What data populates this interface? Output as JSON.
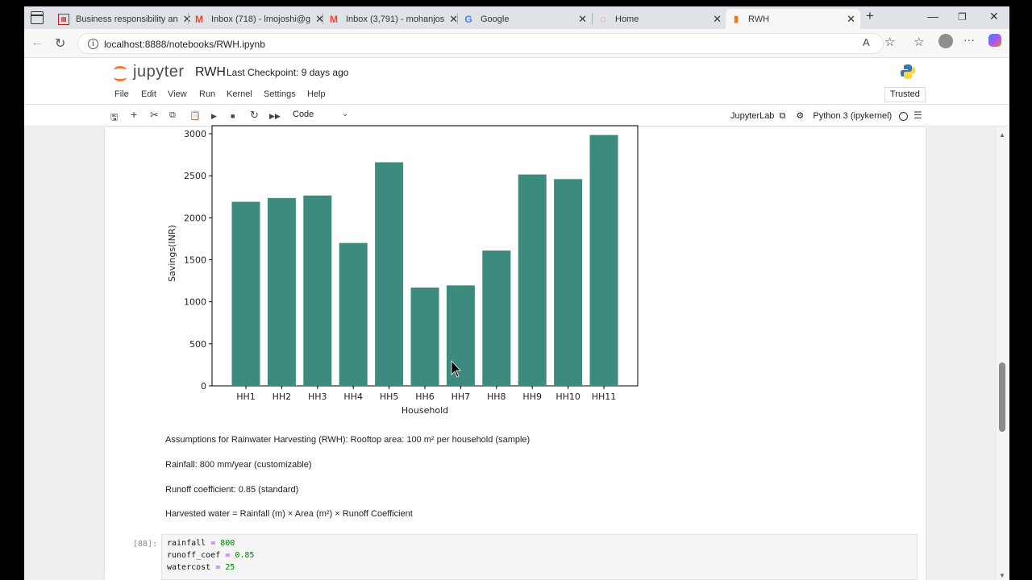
{
  "browser": {
    "tabs": [
      {
        "title": "Business responsibility an",
        "icon": "pdf-icon",
        "color": "#c5221f"
      },
      {
        "title": "Inbox (718) - lmojoshi@g",
        "icon": "gmail-icon",
        "color": "#ea4335"
      },
      {
        "title": "Inbox (3,791) - mohanjos",
        "icon": "gmail-icon",
        "color": "#ea4335"
      },
      {
        "title": "Google",
        "icon": "google-icon",
        "color": "#4285f4"
      },
      {
        "title": "Home",
        "icon": "jupyter-icon",
        "color": "#f37726"
      },
      {
        "title": "RWH",
        "icon": "notebook-icon",
        "color": "#f37726"
      }
    ],
    "url": "localhost:8888/notebooks/RWH.ipynb"
  },
  "jupyter": {
    "logo_text": "jupyter",
    "notebook_name": "RWH",
    "checkpoint": "Last Checkpoint: 9 days ago",
    "menu": [
      "File",
      "Edit",
      "View",
      "Run",
      "Kernel",
      "Settings",
      "Help"
    ],
    "trusted": "Trusted",
    "cell_type": "Code",
    "jupyterlab_link": "JupyterLab",
    "kernel": "Python 3 (ipykernel)"
  },
  "chart_data": {
    "type": "bar",
    "categories": [
      "HH1",
      "HH2",
      "HH3",
      "HH4",
      "HH5",
      "HH6",
      "HH7",
      "HH8",
      "HH9",
      "HH10",
      "HH11"
    ],
    "values": [
      2190,
      2235,
      2265,
      1700,
      2660,
      1170,
      1195,
      1610,
      2515,
      2460,
      2985
    ],
    "xlabel": "Household",
    "ylabel": "Savings(INR)",
    "ylim": [
      0,
      3000
    ],
    "yticks": [
      0,
      500,
      1000,
      1500,
      2000,
      2500,
      3000
    ],
    "bar_color": "#3d8a7f"
  },
  "markdown": [
    "Assumptions for Rainwater Harvesting (RWH): Rooftop area: 100 m² per household (sample)",
    "Rainfall: 800 mm/year (customizable)",
    "Runoff coefficient: 0.85 (standard)",
    "Harvested water = Rainfall (m) × Area (m²) × Runoff Coefficient"
  ],
  "code_cell": {
    "prompt": "[88]:",
    "lines": [
      {
        "name": "rainfall",
        "op": "=",
        "value": "800"
      },
      {
        "name": "runoff_coef",
        "op": "=",
        "value": "0.85"
      },
      {
        "name": "watercost",
        "op": "=",
        "value": "25"
      }
    ]
  }
}
